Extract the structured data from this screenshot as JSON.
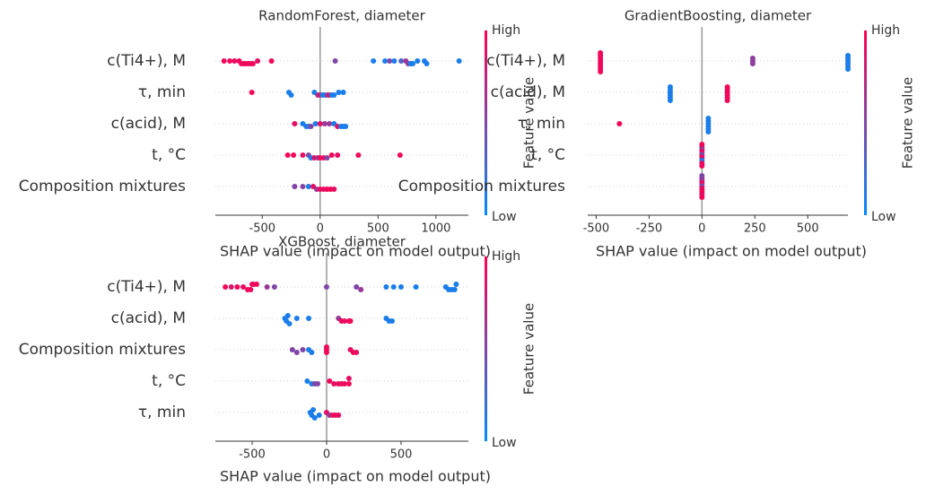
{
  "chart_data": [
    {
      "type": "beeswarm",
      "title": "RandomForest, diameter",
      "xlabel": "SHAP value (impact on model output)",
      "categories": [
        "c(Ti4+), M",
        "τ, min",
        "c(acid), M",
        "t, °C",
        "Composition mixtures"
      ],
      "values": [
        [
          -830,
          -780,
          -740,
          -700,
          -680,
          -660,
          -640,
          -620,
          -600,
          -580,
          -540,
          -420,
          130,
          460,
          560,
          600,
          640,
          700,
          740,
          760,
          780,
          800,
          840,
          900,
          920,
          1200
        ],
        [
          -590,
          -270,
          -250,
          -50,
          -20,
          0,
          20,
          40,
          60,
          80,
          100,
          120,
          160,
          200
        ],
        [
          -220,
          -150,
          -120,
          -100,
          -80,
          -40,
          0,
          40,
          80,
          120,
          150,
          180,
          200,
          220
        ],
        [
          -280,
          -230,
          -150,
          -100,
          -80,
          -50,
          -20,
          0,
          30,
          60,
          100,
          150,
          330,
          690
        ],
        [
          -220,
          -150,
          -100,
          -60,
          -30,
          0,
          30,
          60,
          90,
          120
        ]
      ],
      "feature_values": [
        [
          0.95,
          0.95,
          0.9,
          0.95,
          0.95,
          0.9,
          0.95,
          0.95,
          0.9,
          0.95,
          0.9,
          0.95,
          0.5,
          0.1,
          0.1,
          0.5,
          0.1,
          0.3,
          0.6,
          0.6,
          0.1,
          0.1,
          0.1,
          0.1,
          0.1,
          0.1
        ],
        [
          0.95,
          0.1,
          0.1,
          0.1,
          0.6,
          0.9,
          0.1,
          0.1,
          0.5,
          0.9,
          0.1,
          0.1,
          0.1,
          0.1
        ],
        [
          0.9,
          0.1,
          0.1,
          0.1,
          0.5,
          0.1,
          0.9,
          0.6,
          0.6,
          0.1,
          0.9,
          0.1,
          0.1,
          0.1
        ],
        [
          0.95,
          0.95,
          0.9,
          0.5,
          0.1,
          0.9,
          0.6,
          0.95,
          0.9,
          0.5,
          0.95,
          0.9,
          0.95,
          0.95
        ],
        [
          0.5,
          0.5,
          0.1,
          0.9,
          0.6,
          0.95,
          0.9,
          0.95,
          0.95,
          0.9
        ]
      ],
      "xlim": [
        -905,
        1280
      ],
      "xticks": [
        -500,
        0,
        500,
        1000
      ],
      "colorbar": {
        "label": "Feature value",
        "high": "High",
        "low": "Low"
      },
      "cmap": [
        "#008bfb",
        "#ff0052"
      ]
    },
    {
      "type": "beeswarm",
      "title": "GradientBoosting, diameter",
      "xlabel": "SHAP value (impact on model output)",
      "categories": [
        "c(Ti4+), M",
        "c(acid), M",
        "τ, min",
        "t, °C",
        "Composition mixtures"
      ],
      "values": [
        [
          -480,
          -480,
          -480,
          -480,
          -480,
          -480,
          -480,
          -480,
          240,
          240,
          240,
          690,
          690,
          690,
          690,
          690,
          690
        ],
        [
          -150,
          -150,
          -150,
          -150,
          -150,
          -150,
          120,
          120,
          120,
          120,
          120,
          120
        ],
        [
          -390,
          30,
          30,
          30,
          30,
          30,
          30
        ],
        [
          0,
          0,
          0,
          0,
          0,
          0,
          0,
          0,
          0
        ],
        [
          0,
          0,
          0,
          0,
          0,
          0,
          0,
          0,
          0
        ]
      ],
      "feature_values": [
        [
          0.95,
          0.95,
          0.95,
          0.95,
          0.95,
          0.95,
          0.95,
          0.95,
          0.55,
          0.55,
          0.55,
          0.1,
          0.1,
          0.1,
          0.1,
          0.1,
          0.1
        ],
        [
          0.1,
          0.1,
          0.1,
          0.1,
          0.1,
          0.1,
          0.95,
          0.95,
          0.95,
          0.95,
          0.95,
          0.95
        ],
        [
          0.95,
          0.1,
          0.1,
          0.1,
          0.1,
          0.1,
          0.1
        ],
        [
          0.95,
          0.9,
          0.5,
          0.1,
          0.95,
          0.9,
          0.6,
          0.95,
          0.95
        ],
        [
          0.95,
          0.9,
          0.5,
          0.95,
          0.95,
          0.9,
          0.6,
          0.95,
          0.5
        ]
      ],
      "xlim": [
        -540,
        690
      ],
      "xticks": [
        -500,
        -250,
        0,
        250,
        500
      ],
      "colorbar": {
        "label": "Feature value",
        "high": "High",
        "low": "Low"
      },
      "cmap": [
        "#008bfb",
        "#ff0052"
      ]
    },
    {
      "type": "beeswarm",
      "title": "XGBoost, diameter",
      "xlabel": "SHAP value (impact on model output)",
      "categories": [
        "c(Ti4+), M",
        "c(acid), M",
        "Composition mixtures",
        "t, °C",
        "τ, min"
      ],
      "values": [
        [
          -680,
          -640,
          -600,
          -560,
          -530,
          -510,
          -500,
          -490,
          -470,
          -400,
          -350,
          0,
          200,
          230,
          400,
          450,
          500,
          600,
          800,
          820,
          840,
          860,
          870
        ],
        [
          -280,
          -270,
          -260,
          -250,
          -200,
          -120,
          80,
          100,
          120,
          150,
          160,
          400,
          420,
          440
        ],
        [
          -230,
          -200,
          -160,
          -120,
          -100,
          0,
          0,
          0,
          160,
          180,
          200
        ],
        [
          -130,
          -100,
          -80,
          -60,
          20,
          50,
          80,
          100,
          120,
          150,
          150
        ],
        [
          -110,
          -100,
          -90,
          -80,
          -50,
          0,
          20,
          40,
          60,
          80
        ]
      ],
      "feature_values": [
        [
          0.95,
          0.85,
          0.95,
          0.9,
          0.95,
          0.95,
          0.95,
          0.9,
          0.95,
          0.6,
          0.5,
          0.5,
          0.5,
          0.6,
          0.1,
          0.1,
          0.1,
          0.1,
          0.1,
          0.1,
          0.1,
          0.1,
          0.1
        ],
        [
          0.1,
          0.1,
          0.1,
          0.1,
          0.1,
          0.1,
          0.6,
          0.95,
          0.9,
          0.95,
          0.95,
          0.1,
          0.1,
          0.1
        ],
        [
          0.5,
          0.5,
          0.5,
          0.1,
          0.1,
          0.95,
          0.95,
          0.95,
          0.9,
          0.95,
          0.9
        ],
        [
          0.1,
          0.1,
          0.5,
          0.5,
          0.95,
          0.9,
          0.95,
          0.9,
          0.95,
          0.95,
          0.9
        ],
        [
          0.1,
          0.1,
          0.1,
          0.1,
          0.1,
          0.9,
          0.6,
          0.9,
          0.95,
          0.9
        ]
      ],
      "xlim": [
        -747,
        952
      ],
      "xticks": [
        -500,
        0,
        500
      ],
      "colorbar": {
        "label": "Feature value",
        "high": "High",
        "low": "Low"
      },
      "cmap": [
        "#008bfb",
        "#ff0052"
      ]
    }
  ]
}
